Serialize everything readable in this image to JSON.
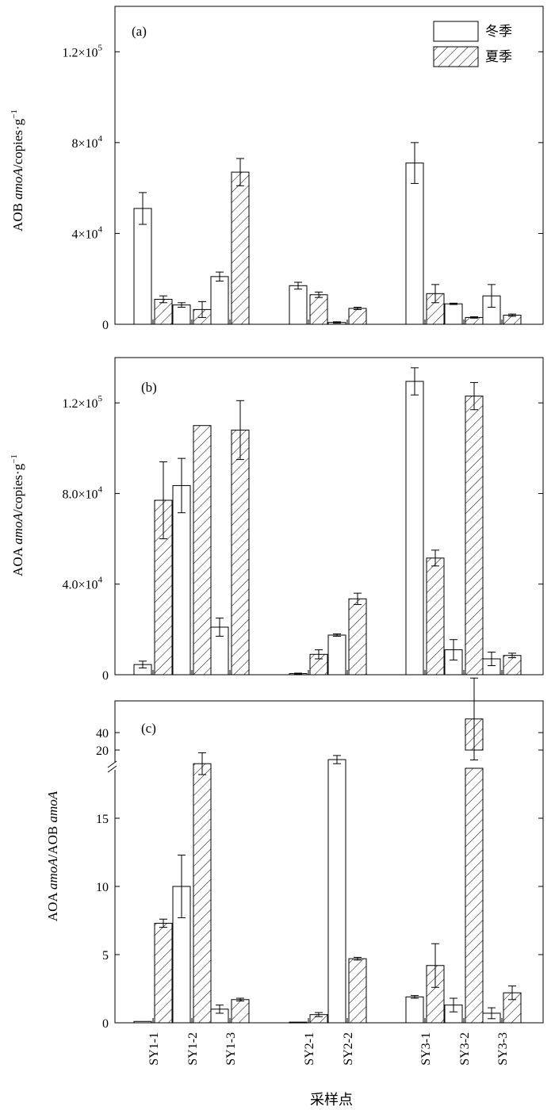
{
  "figure": {
    "xlabel": "采样点",
    "legend": {
      "winter": "冬季",
      "summer": "夏季",
      "position": "top-right of panel (a)"
    }
  },
  "chart_data": [
    {
      "type": "bar",
      "panel": "(a)",
      "ylabel_prefix": "AOB ",
      "ylabel_italic": "amoA",
      "ylabel_suffix": "/copies·g",
      "ylabel_sup": "−1",
      "categories": [
        "SY1-1",
        "SY1-2",
        "SY1-3",
        "SY2-1",
        "SY2-2",
        "SY3-1",
        "SY3-2",
        "SY3-3"
      ],
      "series": [
        {
          "name": "冬季",
          "values": [
            51000,
            8500,
            21000,
            17000,
            800,
            71000,
            9000,
            12500
          ],
          "errors": [
            7000,
            1000,
            2000,
            1500,
            300,
            9000,
            300,
            5000
          ]
        },
        {
          "name": "夏季",
          "values": [
            11000,
            6500,
            67000,
            13000,
            7000,
            13500,
            3000,
            4000
          ],
          "errors": [
            1500,
            3500,
            6000,
            1200,
            500,
            4000,
            300,
            500
          ]
        }
      ],
      "ylim": [
        0,
        140000
      ],
      "yticks": [
        {
          "value": 0,
          "mant": "0",
          "exp": ""
        },
        {
          "value": 40000,
          "mant": "4×10",
          "exp": "4"
        },
        {
          "value": 80000,
          "mant": "8×10",
          "exp": "4"
        },
        {
          "value": 120000,
          "mant": "1.2×10",
          "exp": "5"
        }
      ]
    },
    {
      "type": "bar",
      "panel": "(b)",
      "ylabel_prefix": "AOA ",
      "ylabel_italic": "amoA",
      "ylabel_suffix": "/copies·g",
      "ylabel_sup": "−1",
      "categories": [
        "SY1-1",
        "SY1-2",
        "SY1-3",
        "SY2-1",
        "SY2-2",
        "SY3-1",
        "SY3-2",
        "SY3-3"
      ],
      "series": [
        {
          "name": "冬季",
          "values": [
            4500,
            83500,
            21000,
            500,
            17500,
            129500,
            11000,
            7000
          ],
          "errors": [
            1500,
            12000,
            4000,
            200,
            500,
            6000,
            4500,
            3000
          ]
        },
        {
          "name": "夏季",
          "values": [
            77000,
            110000,
            108000,
            9000,
            33500,
            51500,
            123000,
            8500
          ],
          "errors": [
            17000,
            0,
            13000,
            2000,
            2500,
            3500,
            6000,
            1000
          ]
        }
      ],
      "ylim": [
        0,
        140000
      ],
      "yticks": [
        {
          "value": 0,
          "mant": "0",
          "exp": ""
        },
        {
          "value": 40000,
          "mant": "4.0×10",
          "exp": "4"
        },
        {
          "value": 80000,
          "mant": "8.0×10",
          "exp": "4"
        },
        {
          "value": 120000,
          "mant": "1.2×10",
          "exp": "5"
        }
      ]
    },
    {
      "type": "bar",
      "panel": "(c)",
      "ylabel_prefix": "AOA ",
      "ylabel_italic": "amoA",
      "ylabel_mid": "/AOB ",
      "ylabel_italic2": "amoA",
      "categories": [
        "SY1-1",
        "SY1-2",
        "SY1-3",
        "SY2-1",
        "SY2-2",
        "SY3-1",
        "SY3-2",
        "SY3-3"
      ],
      "series": [
        {
          "name": "冬季",
          "values": [
            0.1,
            10,
            1.0,
            0.05,
            19.3,
            1.9,
            1.3,
            0.7
          ],
          "errors": [
            0,
            2.3,
            0.3,
            0,
            0.3,
            0.1,
            0.5,
            0.4
          ]
        },
        {
          "name": "夏季",
          "values": [
            7.3,
            19,
            1.7,
            0.6,
            4.7,
            4.2,
            41,
            2.2
          ],
          "errors": [
            0.3,
            0.8,
            0.1,
            0.15,
            0.1,
            1.6,
            3,
            0.5
          ]
        }
      ],
      "ylim": [
        0,
        45
      ],
      "axis_break": [
        21,
        37
      ],
      "yticks": [
        {
          "value": 0,
          "label": "0"
        },
        {
          "value": 5,
          "label": "5"
        },
        {
          "value": 10,
          "label": "10"
        },
        {
          "value": 15,
          "label": "15"
        },
        {
          "value": 20,
          "label": "20"
        },
        {
          "value": 40,
          "label": "40"
        }
      ]
    }
  ]
}
